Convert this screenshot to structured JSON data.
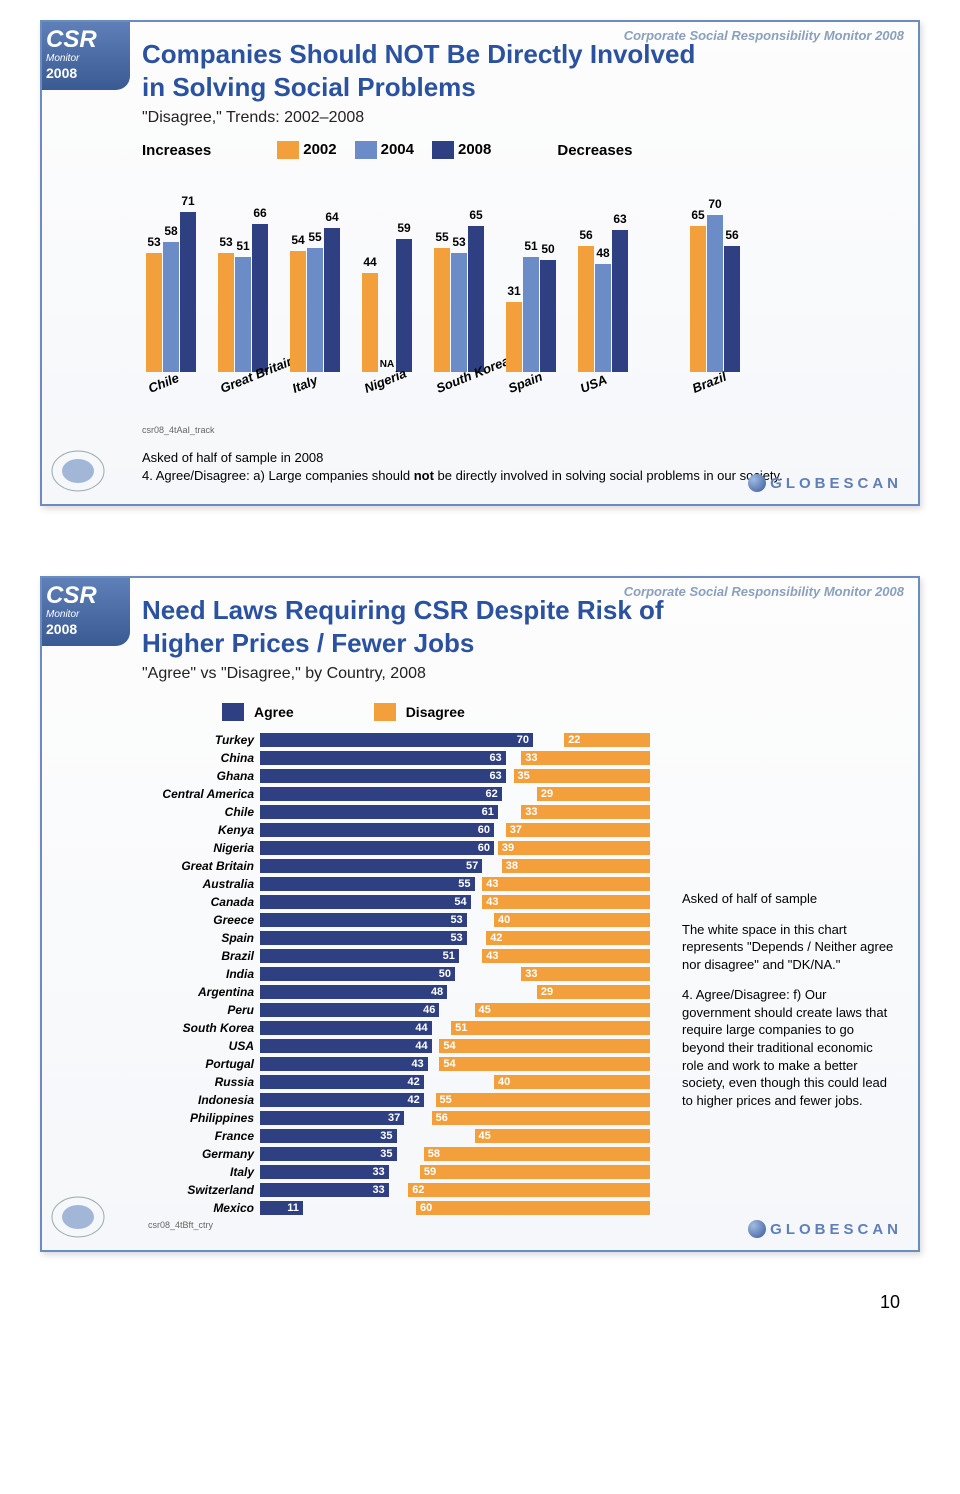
{
  "global": {
    "header_brand": "Corporate Social Responsibility Monitor 2008",
    "csr_logo_main": "CSR",
    "csr_logo_sub": "Monitor",
    "csr_logo_year": "2008",
    "globescan": "GLOBESCAN",
    "page_number": "10"
  },
  "slide1": {
    "title_l1": "Companies Should NOT Be Directly Involved",
    "title_l2": "in Solving Social Problems",
    "subtitle": "\"Disagree,\" Trends: 2002–2008",
    "legend": {
      "increases": "Increases",
      "y2002": "2002",
      "y2004": "2004",
      "y2008": "2008",
      "decreases": "Decreases"
    },
    "colors": {
      "c2002": "#f3a03c",
      "c2004": "#6c8cc8",
      "c2008": "#2e3f82"
    },
    "ymax": 80,
    "groups": [
      {
        "name": "Chile",
        "v": [
          53,
          58,
          71
        ]
      },
      {
        "name": "Great Britain",
        "v": [
          53,
          51,
          66
        ]
      },
      {
        "name": "Italy",
        "v": [
          54,
          55,
          64
        ]
      },
      {
        "name": "Nigeria",
        "v": [
          44,
          null,
          59
        ]
      },
      {
        "name": "South Korea",
        "v": [
          55,
          53,
          65
        ]
      },
      {
        "name": "Spain",
        "v": [
          31,
          51,
          50
        ]
      },
      {
        "name": "USA",
        "v": [
          56,
          48,
          63
        ]
      },
      {
        "name": "Brazil",
        "v": [
          65,
          70,
          56
        ],
        "spaced": true
      }
    ],
    "chart_id": "csr08_4tAaI_track",
    "note_l1": "Asked of half of sample in 2008",
    "note_l2_pre": "4. Agree/Disagree: a) Large companies should ",
    "note_l2_bold": "not",
    "note_l2_post": " be directly involved in solving social problems in our society."
  },
  "slide2": {
    "title_l1": "Need Laws Requiring CSR Despite Risk of",
    "title_l2": "Higher Prices / Fewer Jobs",
    "subtitle": "\"Agree\" vs \"Disagree,\" by Country, 2008",
    "legend": {
      "agree": "Agree",
      "disagree": "Disagree"
    },
    "colors": {
      "agree": "#2e3f82",
      "disagree": "#f3a03c"
    },
    "scale_max": 100,
    "rows": [
      {
        "c": "Turkey",
        "a": 70,
        "d": 22
      },
      {
        "c": "China",
        "a": 63,
        "d": 33
      },
      {
        "c": "Ghana",
        "a": 63,
        "d": 35
      },
      {
        "c": "Central America",
        "a": 62,
        "d": 29
      },
      {
        "c": "Chile",
        "a": 61,
        "d": 33
      },
      {
        "c": "Kenya",
        "a": 60,
        "d": 37
      },
      {
        "c": "Nigeria",
        "a": 60,
        "d": 39
      },
      {
        "c": "Great Britain",
        "a": 57,
        "d": 38
      },
      {
        "c": "Australia",
        "a": 55,
        "d": 43
      },
      {
        "c": "Canada",
        "a": 54,
        "d": 43
      },
      {
        "c": "Greece",
        "a": 53,
        "d": 40
      },
      {
        "c": "Spain",
        "a": 53,
        "d": 42
      },
      {
        "c": "Brazil",
        "a": 51,
        "d": 43
      },
      {
        "c": "India",
        "a": 50,
        "d": 33
      },
      {
        "c": "Argentina",
        "a": 48,
        "d": 29
      },
      {
        "c": "Peru",
        "a": 46,
        "d": 45
      },
      {
        "c": "South Korea",
        "a": 44,
        "d": 51
      },
      {
        "c": "USA",
        "a": 44,
        "d": 54
      },
      {
        "c": "Portugal",
        "a": 43,
        "d": 54
      },
      {
        "c": "Russia",
        "a": 42,
        "d": 40
      },
      {
        "c": "Indonesia",
        "a": 42,
        "d": 55
      },
      {
        "c": "Philippines",
        "a": 37,
        "d": 56
      },
      {
        "c": "France",
        "a": 35,
        "d": 45
      },
      {
        "c": "Germany",
        "a": 35,
        "d": 58
      },
      {
        "c": "Italy",
        "a": 33,
        "d": 59
      },
      {
        "c": "Switzerland",
        "a": 33,
        "d": 62
      },
      {
        "c": "Mexico",
        "a": 11,
        "d": 60
      }
    ],
    "chart_id": "csr08_4tBft_ctry",
    "side": {
      "l1": "Asked of half of sample",
      "l2": "The white space in this chart represents \"Depends / Neither agree nor disagree\" and \"DK/NA.\"",
      "l3": "4. Agree/Disagree: f) Our government should create laws that require large companies to go beyond their traditional economic role and work to make a better society, even though this could lead to higher prices and fewer jobs."
    }
  }
}
